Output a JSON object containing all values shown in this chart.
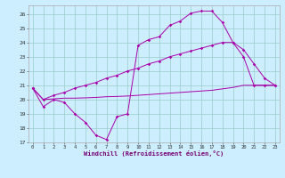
{
  "bg_color": "#cceeff",
  "grid_color": "#99cccc",
  "line_color": "#aa00aa",
  "xlim_min": -0.4,
  "xlim_max": 23.4,
  "ylim_min": 17.0,
  "ylim_max": 26.6,
  "yticks": [
    17,
    18,
    19,
    20,
    21,
    22,
    23,
    24,
    25,
    26
  ],
  "xticks": [
    0,
    1,
    2,
    3,
    4,
    5,
    6,
    7,
    8,
    9,
    10,
    11,
    12,
    13,
    14,
    15,
    16,
    17,
    18,
    19,
    20,
    21,
    22,
    23
  ],
  "xlabel": "Windchill (Refroidissement éolien,°C)",
  "line1_x": [
    0,
    1,
    2,
    3,
    4,
    5,
    6,
    7,
    8,
    9,
    10,
    11,
    12,
    13,
    14,
    15,
    16,
    17,
    18,
    19,
    20,
    21,
    22,
    23
  ],
  "line1_y": [
    20.8,
    19.5,
    20.0,
    19.8,
    19.0,
    18.4,
    17.5,
    17.2,
    18.8,
    19.0,
    23.8,
    24.2,
    24.4,
    25.2,
    25.5,
    26.05,
    26.2,
    26.2,
    25.4,
    24.0,
    23.0,
    21.0,
    21.0,
    21.0
  ],
  "line1_markers": [
    0,
    1,
    2,
    3,
    4,
    5,
    6,
    7,
    8,
    9,
    10,
    11,
    12,
    13,
    14,
    15,
    16,
    17,
    18,
    19,
    20,
    23
  ],
  "line2_x": [
    0,
    1,
    2,
    3,
    4,
    5,
    6,
    7,
    8,
    9,
    10,
    11,
    12,
    13,
    14,
    15,
    16,
    17,
    18,
    19,
    20,
    21,
    22,
    23
  ],
  "line2_y": [
    20.8,
    20.0,
    20.3,
    20.5,
    20.8,
    21.0,
    21.2,
    21.5,
    21.7,
    22.0,
    22.2,
    22.5,
    22.7,
    23.0,
    23.2,
    23.4,
    23.6,
    23.8,
    24.0,
    24.0,
    23.5,
    22.5,
    21.5,
    21.0
  ],
  "line3_x": [
    0,
    1,
    2,
    3,
    4,
    5,
    6,
    7,
    8,
    9,
    10,
    11,
    12,
    13,
    14,
    15,
    16,
    17,
    18,
    19,
    20,
    21,
    22,
    23
  ],
  "line3_y": [
    20.8,
    20.0,
    20.05,
    20.1,
    20.1,
    20.12,
    20.15,
    20.2,
    20.22,
    20.25,
    20.3,
    20.35,
    20.4,
    20.45,
    20.5,
    20.55,
    20.6,
    20.65,
    20.75,
    20.85,
    21.0,
    21.0,
    21.0,
    21.0
  ]
}
